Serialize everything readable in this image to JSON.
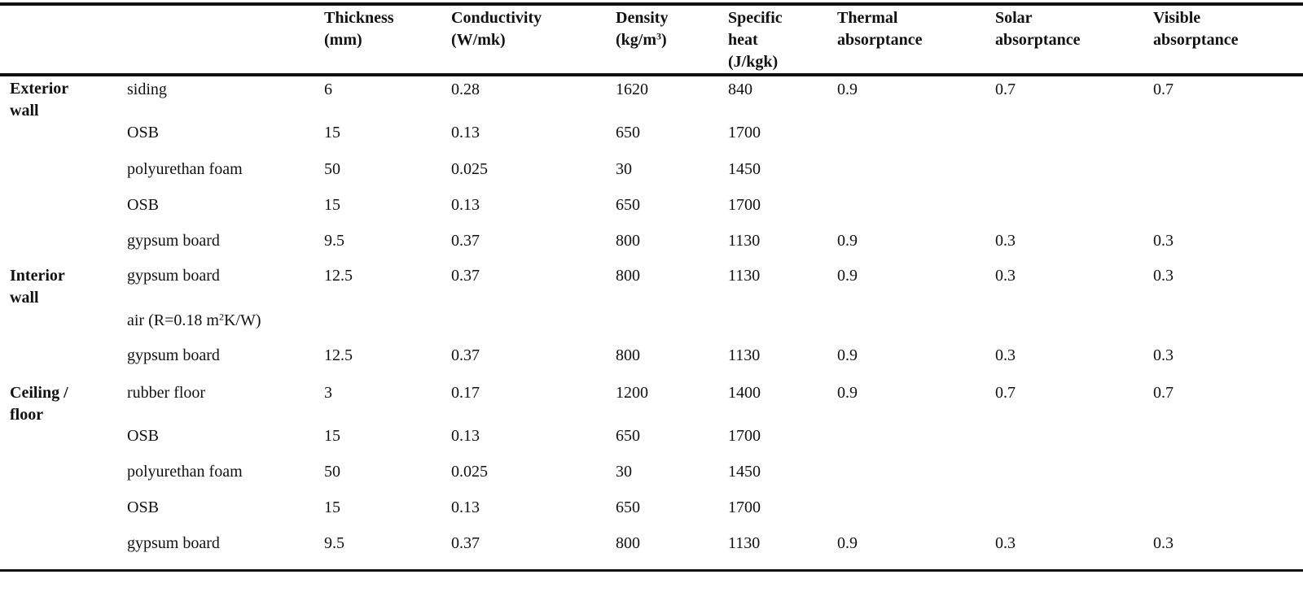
{
  "headers": {
    "thickness": [
      "Thickness",
      "(mm)"
    ],
    "conductivity": [
      "Conductivity",
      "(W/mk)"
    ],
    "density": [
      "Density",
      "(kg/m",
      "3",
      ")"
    ],
    "specific_heat": [
      "Specific",
      "heat",
      "(J/kgk)"
    ],
    "thermal_absorptance": [
      "Thermal",
      "absorptance"
    ],
    "solar_absorptance": [
      "Solar",
      "absorptance"
    ],
    "visible_absorptance": [
      "Visible",
      "absorptance"
    ]
  },
  "groups": [
    {
      "line1": "Exterior",
      "line2": "wall"
    },
    {
      "line1": "Interior",
      "line2": "wall"
    },
    {
      "line1": "Ceiling /",
      "line2": "floor"
    }
  ],
  "rows": [
    {
      "layer": "siding",
      "thickness": "6",
      "conductivity": "0.28",
      "density": "1620",
      "specific_heat": "840",
      "thermal": "0.9",
      "solar": "0.7",
      "visible": "0.7"
    },
    {
      "layer": "OSB",
      "thickness": "15",
      "conductivity": "0.13",
      "density": "650",
      "specific_heat": "1700",
      "thermal": "",
      "solar": "",
      "visible": ""
    },
    {
      "layer": "polyurethan foam",
      "thickness": "50",
      "conductivity": "0.025",
      "density": "30",
      "specific_heat": "1450",
      "thermal": "",
      "solar": "",
      "visible": ""
    },
    {
      "layer": "OSB",
      "thickness": "15",
      "conductivity": "0.13",
      "density": "650",
      "specific_heat": "1700",
      "thermal": "",
      "solar": "",
      "visible": ""
    },
    {
      "layer": "gypsum board",
      "thickness": "9.5",
      "conductivity": "0.37",
      "density": "800",
      "specific_heat": "1130",
      "thermal": "0.9",
      "solar": "0.3",
      "visible": "0.3"
    },
    {
      "layer": "gypsum board",
      "thickness": "12.5",
      "conductivity": "0.37",
      "density": "800",
      "specific_heat": "1130",
      "thermal": "0.9",
      "solar": "0.3",
      "visible": "0.3"
    },
    {
      "layer": "air (R=0.18 m",
      "layer_sup": "2",
      "layer_tail": "K/W)",
      "thickness": "",
      "conductivity": "",
      "density": "",
      "specific_heat": "",
      "thermal": "",
      "solar": "",
      "visible": ""
    },
    {
      "layer": "gypsum board",
      "thickness": "12.5",
      "conductivity": "0.37",
      "density": "800",
      "specific_heat": "1130",
      "thermal": "0.9",
      "solar": "0.3",
      "visible": "0.3"
    },
    {
      "layer": "rubber floor",
      "thickness": "3",
      "conductivity": "0.17",
      "density": "1200",
      "specific_heat": "1400",
      "thermal": "0.9",
      "solar": "0.7",
      "visible": "0.7"
    },
    {
      "layer": "OSB",
      "thickness": "15",
      "conductivity": "0.13",
      "density": "650",
      "specific_heat": "1700",
      "thermal": "",
      "solar": "",
      "visible": ""
    },
    {
      "layer": "polyurethan foam",
      "thickness": "50",
      "conductivity": "0.025",
      "density": "30",
      "specific_heat": "1450",
      "thermal": "",
      "solar": "",
      "visible": ""
    },
    {
      "layer": "OSB",
      "thickness": "15",
      "conductivity": "0.13",
      "density": "650",
      "specific_heat": "1700",
      "thermal": "",
      "solar": "",
      "visible": ""
    },
    {
      "layer": "gypsum board",
      "thickness": "9.5",
      "conductivity": "0.37",
      "density": "800",
      "specific_heat": "1130",
      "thermal": "0.9",
      "solar": "0.3",
      "visible": "0.3"
    }
  ]
}
